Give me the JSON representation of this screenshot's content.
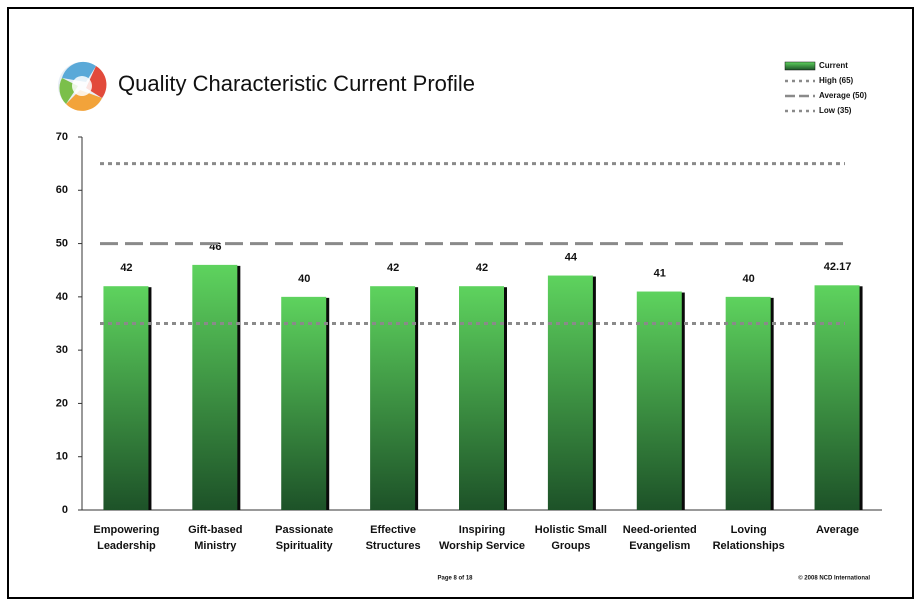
{
  "chart_data": {
    "type": "bar",
    "title": "Quality Characteristic Current Profile",
    "categories": [
      "Empowering Leadership",
      "Gift-based Ministry",
      "Passionate Spirituality",
      "Effective Structures",
      "Inspiring Worship Service",
      "Holistic Small Groups",
      "Need-oriented Evangelism",
      "Loving Relationships",
      "Average"
    ],
    "series": [
      {
        "name": "Current",
        "color": "#3cb043",
        "values": [
          42,
          46,
          40,
          42,
          42,
          44,
          41,
          40,
          42.17
        ]
      }
    ],
    "reference_lines": [
      {
        "name": "High (65)",
        "value": 65,
        "style": "dotted"
      },
      {
        "name": "Average (50)",
        "value": 50,
        "style": "dashed"
      },
      {
        "name": "Low (35)",
        "value": 35,
        "style": "dotted"
      }
    ],
    "ylim": [
      0,
      70
    ],
    "yticks": [
      0,
      10,
      20,
      30,
      40,
      50,
      60,
      70
    ],
    "grid": false,
    "legend": "top-right",
    "footer": "Page 8 of 18",
    "copyright": "© 2008 NCD International"
  }
}
